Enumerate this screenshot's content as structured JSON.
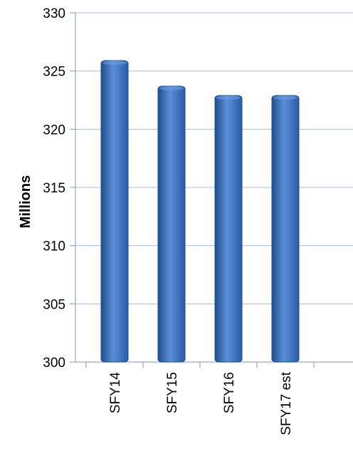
{
  "chart_data": {
    "type": "bar",
    "categories": [
      "SFY14",
      "SFY15",
      "SFY16",
      "SFY17 est"
    ],
    "values": [
      325.9,
      323.7,
      322.9,
      322.9
    ],
    "ylabel": "Millions",
    "ylim": [
      300,
      330
    ],
    "yticks": [
      300,
      305,
      310,
      315,
      320,
      325,
      330
    ],
    "grid": true,
    "legend": "none",
    "colors": {
      "bar": "#3f73c0",
      "bar_dark": "#1f4e91",
      "bar_light": "#6a9ee0",
      "grid": "#a9bedc",
      "axis": "#7f96b8"
    }
  }
}
